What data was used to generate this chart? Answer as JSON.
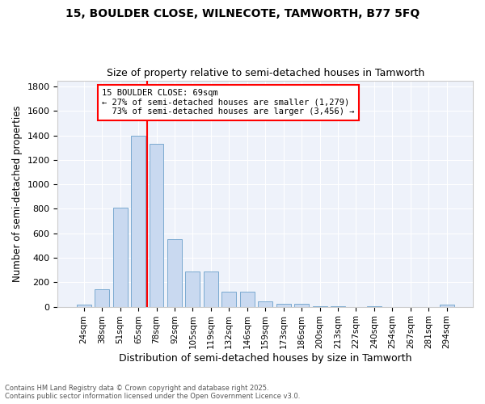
{
  "title1": "15, BOULDER CLOSE, WILNECOTE, TAMWORTH, B77 5FQ",
  "title2": "Size of property relative to semi-detached houses in Tamworth",
  "xlabel": "Distribution of semi-detached houses by size in Tamworth",
  "ylabel": "Number of semi-detached properties",
  "bins": [
    "24sqm",
    "38sqm",
    "51sqm",
    "65sqm",
    "78sqm",
    "92sqm",
    "105sqm",
    "119sqm",
    "132sqm",
    "146sqm",
    "159sqm",
    "173sqm",
    "186sqm",
    "200sqm",
    "213sqm",
    "227sqm",
    "240sqm",
    "254sqm",
    "267sqm",
    "281sqm",
    "294sqm"
  ],
  "values": [
    20,
    145,
    810,
    1400,
    1330,
    550,
    290,
    290,
    120,
    120,
    45,
    25,
    25,
    5,
    5,
    0,
    5,
    0,
    0,
    0,
    15
  ],
  "bar_color": "#c9d9f0",
  "bar_edge_color": "#7aaad0",
  "vline_x_bin": 3.5,
  "vline_color": "red",
  "property_label": "15 BOULDER CLOSE: 69sqm",
  "pct_smaller": "27%",
  "count_smaller": "1,279",
  "pct_larger": "73%",
  "count_larger": "3,456",
  "background_color": "#eef2fa",
  "grid_color": "#ffffff",
  "ylim": [
    0,
    1850
  ],
  "yticks": [
    0,
    200,
    400,
    600,
    800,
    1000,
    1200,
    1400,
    1600,
    1800
  ],
  "footnote1": "Contains HM Land Registry data © Crown copyright and database right 2025.",
  "footnote2": "Contains public sector information licensed under the Open Government Licence v3.0."
}
